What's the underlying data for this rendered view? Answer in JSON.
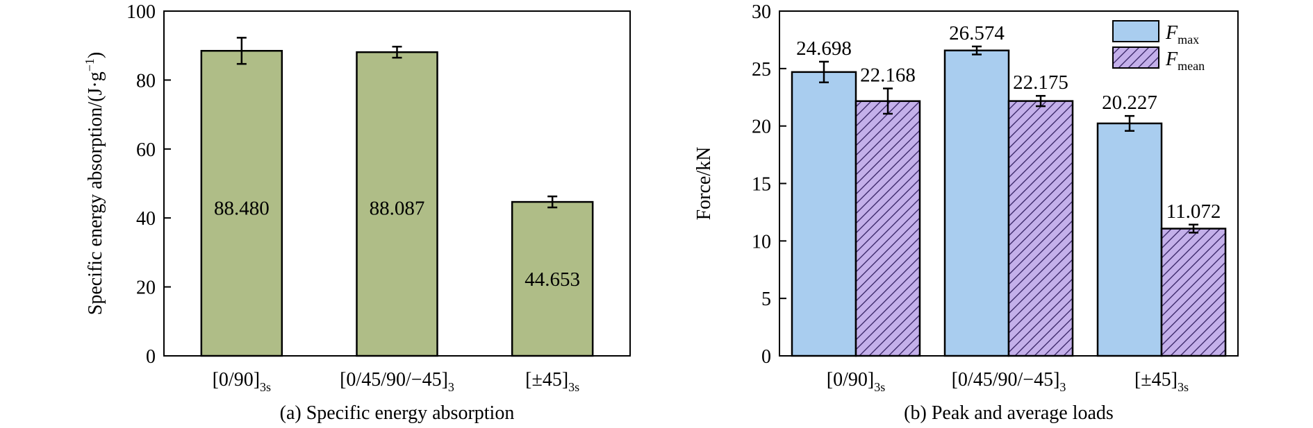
{
  "colors": {
    "sea_bar": "#afbd87",
    "fmax_bar": "#a9cdef",
    "fmean_bar": "#c4b0ea",
    "fmean_hatch": "#3d2a6b"
  },
  "chart_data": [
    {
      "type": "bar",
      "caption": "(a) Specific energy absorption",
      "ylabel": "Specific energy absorption/(J·g",
      "ylabel_sup": "−1",
      "ylabel_close": ")",
      "ylim": [
        0,
        100
      ],
      "yticks": [
        0,
        20,
        40,
        60,
        80,
        100
      ],
      "categories": [
        {
          "main": "[0/90]",
          "sub": "3s"
        },
        {
          "main": "[0/45/90/−45]",
          "sub": "3"
        },
        {
          "main": "[±45]",
          "sub": "3s"
        }
      ],
      "series": [
        {
          "values": [
            88.48,
            88.087,
            44.653
          ],
          "labels": [
            "88.480",
            "88.087",
            "44.653"
          ],
          "errors": [
            3.8,
            1.6,
            1.6
          ]
        }
      ]
    },
    {
      "type": "bar",
      "caption": "(b) Peak and average loads",
      "ylabel": "Force/kN",
      "ylim": [
        0,
        30
      ],
      "yticks": [
        0,
        5,
        10,
        15,
        20,
        25,
        30
      ],
      "legend_position": "top-right",
      "categories": [
        {
          "main": "[0/90]",
          "sub": "3s"
        },
        {
          "main": "[0/45/90/−45]",
          "sub": "3"
        },
        {
          "main": "[±45]",
          "sub": "3s"
        }
      ],
      "series": [
        {
          "name": "F",
          "name_sub": "max",
          "values": [
            24.698,
            26.574,
            20.227
          ],
          "labels": [
            "24.698",
            "26.574",
            "20.227"
          ],
          "errors": [
            0.9,
            0.35,
            0.65
          ]
        },
        {
          "name": "F",
          "name_sub": "mean",
          "values": [
            22.168,
            22.175,
            11.072
          ],
          "labels": [
            "22.168",
            "22.175",
            "11.072"
          ],
          "errors": [
            1.1,
            0.45,
            0.35
          ]
        }
      ]
    }
  ]
}
